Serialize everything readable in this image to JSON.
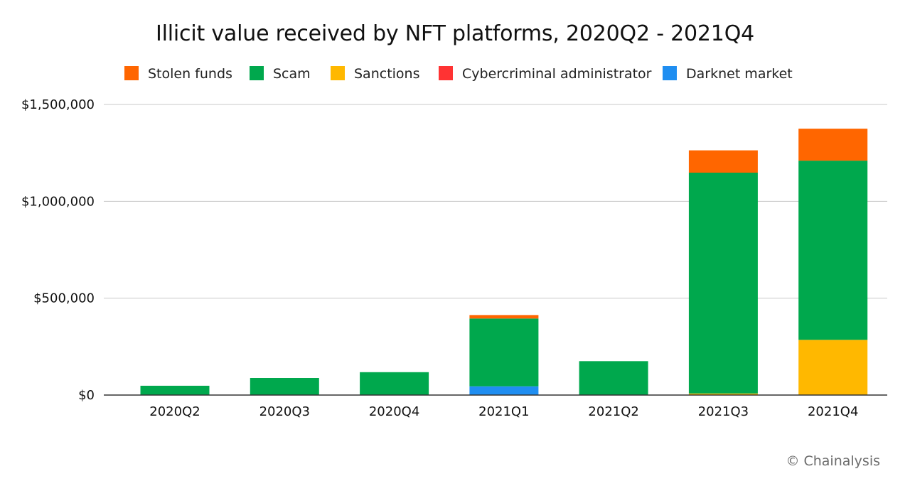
{
  "title": "Illicit value received by NFT platforms, 2020Q2 - 2021Q4",
  "source": "© Chainalysis",
  "chart_data": {
    "type": "bar",
    "stacked": true,
    "title": "Illicit value received by NFT platforms, 2020Q2 - 2021Q4",
    "xlabel": "",
    "ylabel": "",
    "ylim": [
      0,
      1500000
    ],
    "yticks": [
      0,
      500000,
      1000000,
      1500000
    ],
    "ytick_labels": [
      "$0",
      "$500,000",
      "$1,000,000",
      "$1,500,000"
    ],
    "grid": true,
    "legend_position": "top",
    "categories": [
      "2020Q2",
      "2020Q3",
      "2020Q4",
      "2021Q1",
      "2021Q2",
      "2021Q3",
      "2021Q4"
    ],
    "stack_order_bottom_to_top": [
      "Darknet market",
      "Cybercriminal administrator",
      "Sanctions",
      "Scam",
      "Stolen funds"
    ],
    "series": [
      {
        "name": "Stolen funds",
        "color": "#ff6600",
        "values": [
          0,
          0,
          0,
          18000,
          0,
          115000,
          165000
        ]
      },
      {
        "name": "Scam",
        "color": "#00a84d",
        "values": [
          48000,
          88000,
          118000,
          350000,
          175000,
          1140000,
          925000
        ]
      },
      {
        "name": "Sanctions",
        "color": "#ffb800",
        "values": [
          0,
          0,
          0,
          0,
          0,
          8000,
          285000
        ]
      },
      {
        "name": "Cybercriminal administrator",
        "color": "#ff3333",
        "values": [
          0,
          0,
          0,
          0,
          0,
          0,
          0
        ]
      },
      {
        "name": "Darknet market",
        "color": "#1f8ef1",
        "values": [
          0,
          0,
          0,
          45000,
          0,
          0,
          0
        ]
      }
    ]
  }
}
